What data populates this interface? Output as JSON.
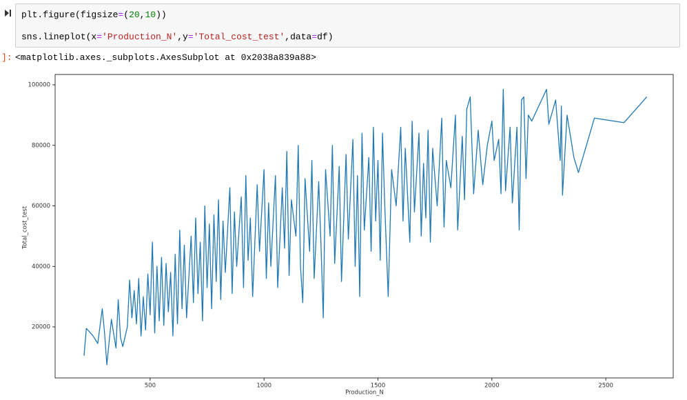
{
  "cell": {
    "code": [
      [
        "plt.figure(figsize",
        "=",
        "(",
        "20",
        ",",
        "10",
        "))"
      ],
      [
        "sns.lineplot(x",
        "=",
        "'Production_N'",
        ",y",
        "=",
        "'Total_cost_test'",
        ",data",
        "=",
        "df)"
      ]
    ],
    "output_prompt": "]:",
    "output": "<matplotlib.axes._subplots.AxesSubplot at 0x2038a839a88>"
  },
  "chart_data": {
    "type": "line",
    "xlabel": "Production_N",
    "ylabel": "Total_cost_test",
    "xlim": [
      83,
      2796
    ],
    "ylim": [
      3134,
      103419
    ],
    "xticks": [
      500,
      1000,
      1500,
      2000,
      2500
    ],
    "yticks": [
      20000,
      40000,
      60000,
      80000,
      100000
    ],
    "x": [
      210,
      220,
      250,
      270,
      290,
      300,
      310,
      330,
      350,
      360,
      370,
      380,
      400,
      410,
      420,
      430,
      440,
      450,
      460,
      470,
      480,
      490,
      500,
      510,
      520,
      530,
      540,
      550,
      560,
      570,
      580,
      590,
      600,
      610,
      620,
      630,
      640,
      650,
      660,
      680,
      690,
      700,
      710,
      720,
      730,
      740,
      750,
      760,
      770,
      780,
      790,
      800,
      810,
      820,
      830,
      850,
      860,
      870,
      880,
      900,
      910,
      920,
      930,
      940,
      950,
      970,
      980,
      1000,
      1010,
      1020,
      1030,
      1050,
      1060,
      1080,
      1090,
      1100,
      1110,
      1120,
      1140,
      1150,
      1160,
      1170,
      1180,
      1200,
      1210,
      1220,
      1240,
      1250,
      1260,
      1270,
      1290,
      1300,
      1310,
      1330,
      1340,
      1360,
      1370,
      1390,
      1400,
      1410,
      1420,
      1430,
      1440,
      1460,
      1470,
      1480,
      1490,
      1500,
      1510,
      1520,
      1530,
      1545,
      1560,
      1580,
      1600,
      1610,
      1620,
      1640,
      1650,
      1660,
      1680,
      1690,
      1700,
      1710,
      1720,
      1730,
      1740,
      1760,
      1780,
      1790,
      1800,
      1820,
      1840,
      1850,
      1870,
      1880,
      1890,
      1905,
      1920,
      1940,
      1960,
      1980,
      2000,
      2010,
      2030,
      2040,
      2050,
      2060,
      2080,
      2090,
      2110,
      2120,
      2130,
      2140,
      2150,
      2160,
      2175,
      2240,
      2250,
      2280,
      2300,
      2305,
      2310,
      2330,
      2360,
      2380,
      2450,
      2580,
      2680
    ],
    "series": [
      {
        "color": "#1f77b4",
        "values": [
          10500,
          19500,
          17000,
          14500,
          26000,
          18000,
          7500,
          22500,
          13000,
          29000,
          16500,
          13500,
          20000,
          35500,
          23000,
          32000,
          21000,
          36000,
          17000,
          30000,
          19000,
          37500,
          24000,
          48000,
          18000,
          40000,
          22000,
          43000,
          20500,
          41000,
          25000,
          38000,
          17000,
          44000,
          21000,
          52000,
          26000,
          47000,
          23000,
          50000,
          28000,
          56000,
          31000,
          48000,
          22000,
          60000,
          33000,
          54000,
          26000,
          57000,
          35000,
          62000,
          29000,
          55000,
          38000,
          66000,
          31000,
          58000,
          40000,
          63000,
          33000,
          70000,
          42000,
          56000,
          30000,
          67000,
          45000,
          72000,
          36000,
          61000,
          40000,
          70000,
          33000,
          66000,
          46000,
          78000,
          37000,
          62000,
          50000,
          80000,
          40000,
          28000,
          69000,
          45000,
          75000,
          36000,
          68000,
          47000,
          23000,
          72000,
          50000,
          80000,
          41000,
          73000,
          35000,
          77000,
          49000,
          82000,
          40000,
          70000,
          30000,
          84000,
          52000,
          76000,
          45000,
          86000,
          55000,
          75000,
          42000,
          84000,
          60000,
          30000,
          72000,
          60000,
          86000,
          55000,
          79000,
          48000,
          88000,
          58000,
          84000,
          50000,
          74000,
          56000,
          85000,
          48000,
          79000,
          60000,
          89000,
          53000,
          75000,
          66000,
          90000,
          52000,
          83000,
          62000,
          92000,
          96000,
          64000,
          85000,
          67000,
          80000,
          88000,
          75000,
          82000,
          64000,
          98500,
          65000,
          86000,
          61000,
          86000,
          52000,
          95000,
          96000,
          69000,
          90000,
          88000,
          98500,
          87000,
          95000,
          75000,
          93000,
          63500,
          90000,
          76000,
          71000,
          89000,
          87500,
          96000
        ]
      }
    ]
  }
}
